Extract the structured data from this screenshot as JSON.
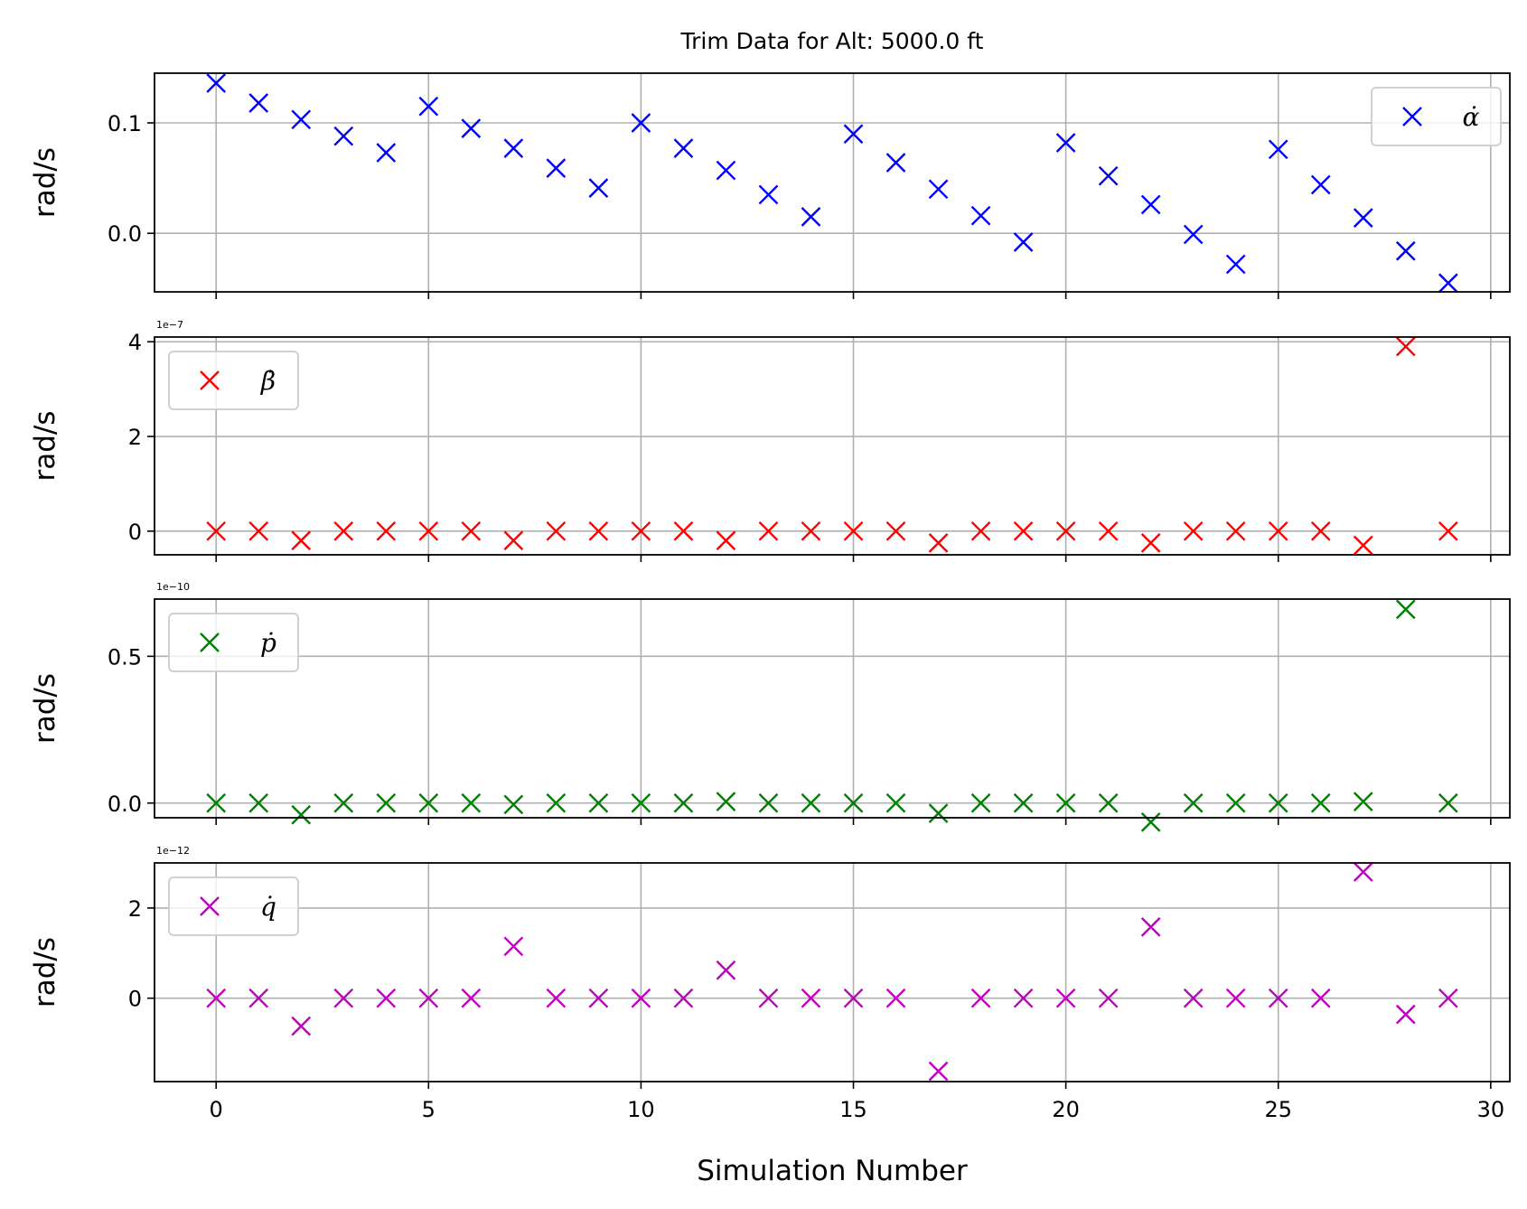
{
  "chart_data": {
    "type": "scatter",
    "title": "Trim Data for Alt: 5000.0 ft",
    "xlabel": "Simulation Number",
    "xlim": [
      -1.45,
      30.45
    ],
    "xticks": [
      0,
      5,
      10,
      15,
      20,
      25,
      30
    ],
    "grid": true,
    "marker": "x",
    "panels": [
      {
        "ylabel": "rad/s",
        "offset_text": "",
        "ylim": [
          -0.053,
          0.145
        ],
        "yticks": [
          0.0,
          0.1
        ],
        "ytick_labels": [
          "0.0",
          "0.1"
        ],
        "legend": "α̇",
        "legend_loc": "upper right",
        "color": "#0000ff",
        "series": {
          "name": "α̇",
          "x": [
            0,
            1,
            2,
            3,
            4,
            5,
            6,
            7,
            8,
            9,
            10,
            11,
            12,
            13,
            14,
            15,
            16,
            17,
            18,
            19,
            20,
            21,
            22,
            23,
            24,
            25,
            26,
            27,
            28,
            29
          ],
          "values": [
            0.136,
            0.118,
            0.103,
            0.088,
            0.073,
            0.115,
            0.095,
            0.077,
            0.059,
            0.041,
            0.1,
            0.077,
            0.057,
            0.035,
            0.015,
            0.09,
            0.064,
            0.04,
            0.016,
            -0.008,
            0.082,
            0.052,
            0.026,
            -0.001,
            -0.028,
            0.076,
            0.044,
            0.014,
            -0.016,
            -0.045
          ]
        }
      },
      {
        "ylabel": "rad/s",
        "offset_text": "1e−7",
        "ylim": [
          -0.5,
          4.1
        ],
        "yticks": [
          0,
          2,
          4
        ],
        "ytick_labels": [
          "0",
          "2",
          "4"
        ],
        "legend": "β̇",
        "legend_loc": "upper left",
        "color": "#ff0000",
        "series": {
          "name": "β̇",
          "x": [
            0,
            1,
            2,
            3,
            4,
            5,
            6,
            7,
            8,
            9,
            10,
            11,
            12,
            13,
            14,
            15,
            16,
            17,
            18,
            19,
            20,
            21,
            22,
            23,
            24,
            25,
            26,
            27,
            28,
            29
          ],
          "values": [
            0,
            0,
            -0.2,
            0,
            0,
            0,
            0,
            -0.2,
            0,
            0,
            0,
            0,
            -0.2,
            0,
            0,
            0,
            0,
            -0.25,
            0,
            0,
            0,
            0,
            -0.25,
            0,
            0,
            0,
            0,
            -0.3,
            3.9,
            0
          ]
        }
      },
      {
        "ylabel": "rad/s",
        "offset_text": "1e−10",
        "ylim": [
          -0.05,
          0.695
        ],
        "yticks": [
          0.0,
          0.5
        ],
        "ytick_labels": [
          "0.0",
          "0.5"
        ],
        "legend": "ṗ",
        "legend_loc": "upper left",
        "color": "#008000",
        "series": {
          "name": "ṗ",
          "x": [
            0,
            1,
            2,
            3,
            4,
            5,
            6,
            7,
            8,
            9,
            10,
            11,
            12,
            13,
            14,
            15,
            16,
            17,
            18,
            19,
            20,
            21,
            22,
            23,
            24,
            25,
            26,
            27,
            28,
            29
          ],
          "values": [
            0,
            0,
            -0.04,
            0,
            0,
            0,
            0,
            -0.005,
            0,
            0,
            0,
            0,
            0.005,
            0,
            0,
            0,
            0,
            -0.035,
            0,
            0,
            0,
            0,
            -0.065,
            0,
            0,
            0,
            0,
            0.005,
            0.66,
            0
          ]
        }
      },
      {
        "ylabel": "rad/s",
        "offset_text": "1e−12",
        "ylim": [
          -1.85,
          3.0
        ],
        "yticks": [
          0,
          2
        ],
        "ytick_labels": [
          "0",
          "2"
        ],
        "legend": "q̇",
        "legend_loc": "upper left",
        "color": "#bf00bf",
        "series": {
          "name": "q̇",
          "x": [
            0,
            1,
            2,
            3,
            4,
            5,
            6,
            7,
            8,
            9,
            10,
            11,
            12,
            13,
            14,
            15,
            16,
            17,
            18,
            19,
            20,
            21,
            22,
            23,
            24,
            25,
            26,
            27,
            28,
            29
          ],
          "values": [
            0,
            0,
            -0.62,
            0,
            0,
            0,
            0,
            1.15,
            0,
            0,
            0,
            0,
            0.62,
            0,
            0,
            0,
            0,
            -1.62,
            0,
            0,
            0,
            0,
            1.58,
            0,
            0,
            0,
            0,
            2.8,
            -0.36,
            0
          ]
        }
      }
    ]
  }
}
